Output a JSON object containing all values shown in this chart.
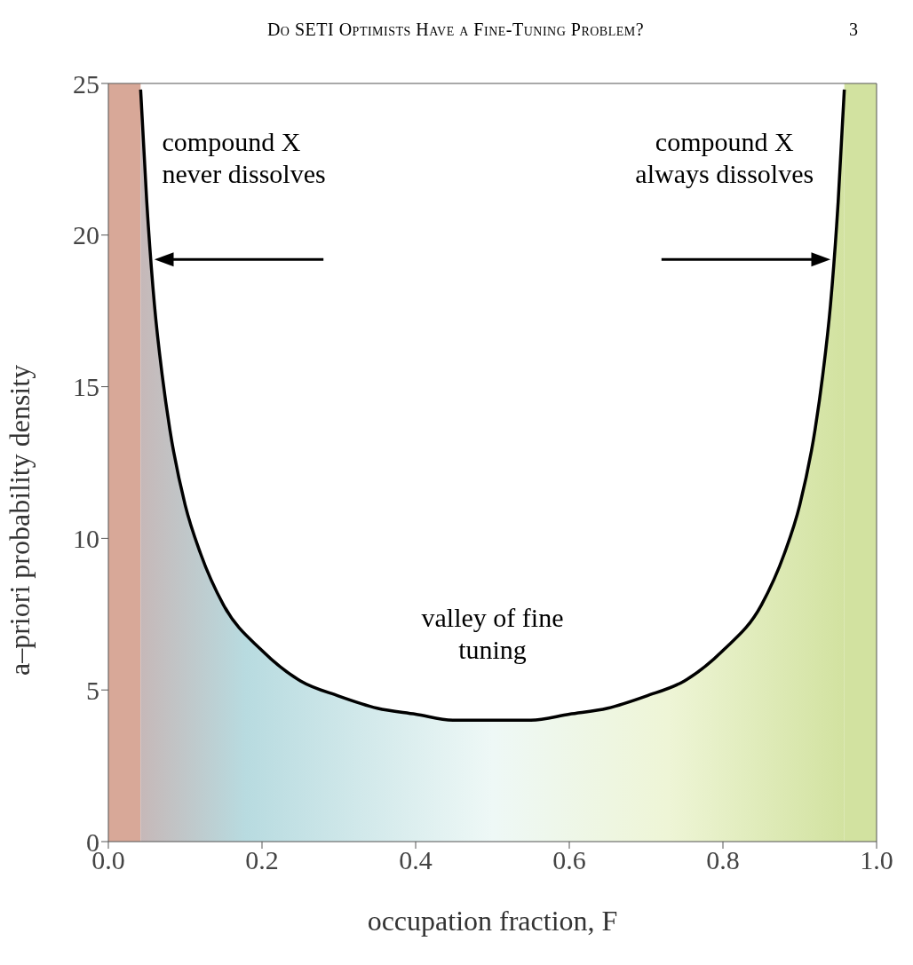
{
  "chart_data": {
    "type": "area",
    "title": "Do SETI Optimists Have a Fine-Tuning Problem?",
    "xlabel": "occupation fraction, F",
    "ylabel": "a–priori probability density",
    "annotations": [
      "3",
      "compound X never dissolves",
      "compound X always dissolves",
      "valley of fine tuning"
    ],
    "x": [
      0.042,
      0.05,
      0.06,
      0.07,
      0.08,
      0.1,
      0.12,
      0.15,
      0.2,
      0.25,
      0.3,
      0.35,
      0.4,
      0.45,
      0.5,
      0.55,
      0.6,
      0.65,
      0.7,
      0.75,
      0.8,
      0.85,
      0.88,
      0.9,
      0.92,
      0.93,
      0.94,
      0.95,
      0.958
    ],
    "series": [
      {
        "color": "#000000",
        "values": [
          24.8,
          21.1,
          17.7,
          15.4,
          13.6,
          11.1,
          9.5,
          7.8,
          6.3,
          5.3,
          4.8,
          4.4,
          4.2,
          4.0,
          4.0,
          4.0,
          4.2,
          4.4,
          4.8,
          5.3,
          6.3,
          7.8,
          9.5,
          11.1,
          13.6,
          15.4,
          17.7,
          21.1,
          24.8
        ]
      }
    ],
    "bands": [
      {
        "axis": "x",
        "from": 0,
        "to": 0.042,
        "color": "#d8a898"
      },
      {
        "axis": "x",
        "from": 0.958,
        "to": 1,
        "color": "#d2e2a0"
      }
    ],
    "xlim": [
      0,
      1
    ],
    "xticks": [
      {
        "value": 0,
        "label": "0.0"
      },
      {
        "value": 0.2,
        "label": "0.2"
      },
      {
        "value": 0.4,
        "label": "0.4"
      },
      {
        "value": 0.6,
        "label": "0.6"
      },
      {
        "value": 0.8,
        "label": "0.8"
      },
      {
        "value": 1,
        "label": "1.0"
      }
    ],
    "ylim": [
      0,
      25
    ],
    "yticks": [
      0,
      5,
      10,
      15,
      20,
      25
    ],
    "grid": false
  }
}
